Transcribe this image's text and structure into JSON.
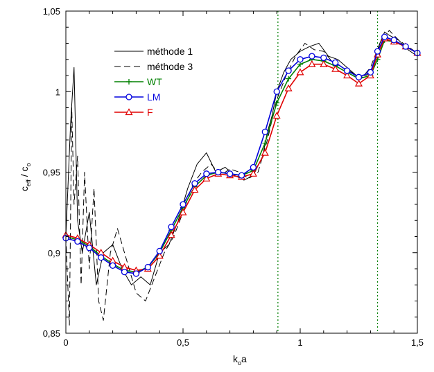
{
  "chart_data": {
    "type": "line",
    "xlabel": {
      "main": "k",
      "sub": "o",
      "tail": "a"
    },
    "ylabel": {
      "num_main": "c",
      "num_sub": "eff",
      "sep": " / ",
      "den_main": "c",
      "den_sub": "o"
    },
    "xlim": [
      0,
      1.5
    ],
    "ylim": [
      0.85,
      1.05
    ],
    "xticks": [
      0,
      0.5,
      1,
      1.5
    ],
    "xtick_labels": [
      "0",
      "0,5",
      "1",
      "1,5"
    ],
    "yticks": [
      0.85,
      0.9,
      0.95,
      1.0,
      1.05
    ],
    "ytick_labels": [
      "0,85",
      "0,9",
      "0,95",
      "1",
      "1,05"
    ],
    "grid": false,
    "legend_position": "top-left",
    "vlines": [
      0.905,
      1.33
    ],
    "colors": {
      "WT": "#008000",
      "LM": "#0000dd",
      "F": "#e00000",
      "methode": "#000000",
      "vline": "#008000"
    },
    "series": [
      {
        "name": "méthode 1",
        "style": "solid",
        "x": [
          0.0,
          0.02,
          0.035,
          0.05,
          0.07,
          0.1,
          0.13,
          0.16,
          0.2,
          0.24,
          0.28,
          0.32,
          0.36,
          0.4,
          0.44,
          0.48,
          0.52,
          0.56,
          0.6,
          0.64,
          0.68,
          0.72,
          0.76,
          0.8,
          0.84,
          0.86,
          0.88,
          0.9,
          0.93,
          0.96,
          1.0,
          1.04,
          1.08,
          1.12,
          1.16,
          1.2,
          1.24,
          1.28,
          1.3,
          1.32,
          1.34,
          1.36,
          1.38,
          1.42,
          1.46,
          1.5
        ],
        "y": [
          0.91,
          0.98,
          1.015,
          0.92,
          0.9,
          0.925,
          0.88,
          0.9,
          0.905,
          0.89,
          0.88,
          0.885,
          0.88,
          0.9,
          0.905,
          0.92,
          0.94,
          0.955,
          0.962,
          0.95,
          0.953,
          0.948,
          0.945,
          0.948,
          0.96,
          0.975,
          0.985,
          1.0,
          1.012,
          1.02,
          1.025,
          1.028,
          1.03,
          1.022,
          1.02,
          1.015,
          1.01,
          1.01,
          1.012,
          1.02,
          1.03,
          1.037,
          1.035,
          1.032,
          1.026,
          1.022
        ]
      },
      {
        "name": "méthode 3",
        "style": "dashed",
        "x": [
          0.0,
          0.015,
          0.025,
          0.035,
          0.05,
          0.065,
          0.08,
          0.1,
          0.12,
          0.14,
          0.16,
          0.19,
          0.22,
          0.26,
          0.3,
          0.34,
          0.38,
          0.42,
          0.46,
          0.5,
          0.54,
          0.58,
          0.62,
          0.66,
          0.7,
          0.74,
          0.78,
          0.82,
          0.86,
          0.9,
          0.94,
          0.98,
          1.02,
          1.06,
          1.1,
          1.14,
          1.18,
          1.22,
          1.26,
          1.3,
          1.34,
          1.38,
          1.42,
          1.46,
          1.5
        ],
        "y": [
          0.91,
          0.855,
          0.99,
          0.93,
          0.96,
          0.88,
          0.95,
          0.89,
          0.94,
          0.87,
          0.858,
          0.9,
          0.915,
          0.895,
          0.875,
          0.87,
          0.885,
          0.9,
          0.91,
          0.925,
          0.942,
          0.95,
          0.955,
          0.948,
          0.952,
          0.95,
          0.946,
          0.95,
          0.97,
          0.995,
          1.01,
          1.022,
          1.03,
          1.026,
          1.025,
          1.018,
          1.015,
          1.012,
          1.008,
          1.015,
          1.03,
          1.038,
          1.032,
          1.028,
          1.024
        ]
      },
      {
        "name": "WT",
        "style": "solid-plus",
        "x": [
          0.0,
          0.05,
          0.1,
          0.15,
          0.2,
          0.25,
          0.3,
          0.35,
          0.4,
          0.45,
          0.5,
          0.55,
          0.6,
          0.65,
          0.7,
          0.75,
          0.8,
          0.85,
          0.9,
          0.95,
          1.0,
          1.05,
          1.1,
          1.15,
          1.2,
          1.25,
          1.3,
          1.33,
          1.36,
          1.4,
          1.45,
          1.5
        ],
        "y": [
          0.91,
          0.908,
          0.904,
          0.898,
          0.893,
          0.889,
          0.888,
          0.891,
          0.9,
          0.914,
          0.928,
          0.941,
          0.948,
          0.95,
          0.949,
          0.948,
          0.951,
          0.968,
          0.993,
          1.008,
          1.017,
          1.02,
          1.019,
          1.016,
          1.012,
          1.008,
          1.01,
          1.02,
          1.032,
          1.031,
          1.028,
          1.024
        ]
      },
      {
        "name": "LM",
        "style": "solid-circle",
        "x": [
          0.0,
          0.05,
          0.1,
          0.15,
          0.2,
          0.25,
          0.3,
          0.35,
          0.4,
          0.45,
          0.5,
          0.55,
          0.6,
          0.65,
          0.7,
          0.75,
          0.8,
          0.85,
          0.9,
          0.95,
          1.0,
          1.05,
          1.1,
          1.15,
          1.2,
          1.25,
          1.3,
          1.33,
          1.36,
          1.4,
          1.45,
          1.5
        ],
        "y": [
          0.909,
          0.907,
          0.903,
          0.897,
          0.892,
          0.888,
          0.887,
          0.891,
          0.901,
          0.916,
          0.93,
          0.943,
          0.949,
          0.95,
          0.949,
          0.948,
          0.953,
          0.975,
          1.0,
          1.013,
          1.02,
          1.022,
          1.021,
          1.018,
          1.013,
          1.009,
          1.012,
          1.025,
          1.034,
          1.032,
          1.028,
          1.024
        ]
      },
      {
        "name": "F",
        "style": "solid-triangle",
        "x": [
          0.0,
          0.05,
          0.1,
          0.15,
          0.2,
          0.25,
          0.3,
          0.35,
          0.4,
          0.45,
          0.5,
          0.55,
          0.6,
          0.65,
          0.7,
          0.75,
          0.8,
          0.85,
          0.9,
          0.95,
          1.0,
          1.05,
          1.1,
          1.15,
          1.2,
          1.25,
          1.3,
          1.33,
          1.36,
          1.4,
          1.45,
          1.5
        ],
        "y": [
          0.911,
          0.909,
          0.905,
          0.9,
          0.895,
          0.891,
          0.889,
          0.89,
          0.898,
          0.911,
          0.925,
          0.939,
          0.946,
          0.949,
          0.948,
          0.947,
          0.949,
          0.962,
          0.985,
          1.002,
          1.012,
          1.017,
          1.017,
          1.014,
          1.01,
          1.005,
          1.01,
          1.023,
          1.033,
          1.031,
          1.028,
          1.024
        ]
      }
    ],
    "legend": [
      {
        "label": "méthode 1",
        "series": "méthode 1",
        "color": "#000000"
      },
      {
        "label": "méthode 3",
        "series": "méthode 3",
        "color": "#000000"
      },
      {
        "label": "WT",
        "series": "WT",
        "color": "#008000"
      },
      {
        "label": "LM",
        "series": "LM",
        "color": "#0000dd"
      },
      {
        "label": "F",
        "series": "F",
        "color": "#e00000"
      }
    ]
  }
}
